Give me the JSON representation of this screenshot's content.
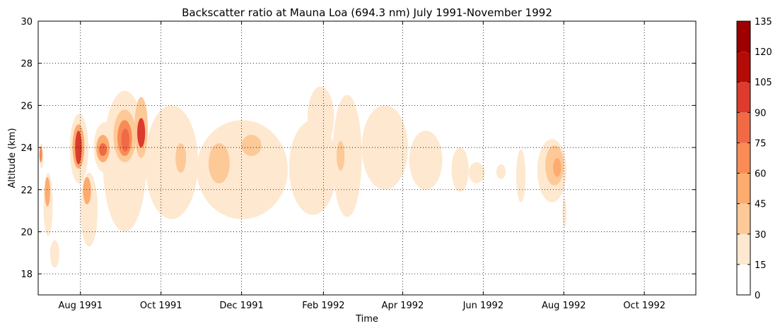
{
  "chart_data": {
    "type": "heatmap",
    "title": "Backscatter ratio at Mauna Loa (694.3 nm) July 1991-November 1992",
    "xlabel": "Time",
    "ylabel": "Altitude (km)",
    "xlim": [
      "1991-06-30",
      "1992-11-09"
    ],
    "ylim": [
      17,
      30
    ],
    "x_tick_labels": [
      {
        "date": "1991-08-01",
        "label": "Aug 1991"
      },
      {
        "date": "1991-10-01",
        "label": "Oct 1991"
      },
      {
        "date": "1991-12-01",
        "label": "Dec 1991"
      },
      {
        "date": "1992-02-01",
        "label": "Feb 1992"
      },
      {
        "date": "1992-04-01",
        "label": "Apr 1992"
      },
      {
        "date": "1992-06-01",
        "label": "Jun 1992"
      },
      {
        "date": "1992-08-01",
        "label": "Aug 1992"
      },
      {
        "date": "1992-10-01",
        "label": "Oct 1992"
      }
    ],
    "y_ticks": [
      18,
      20,
      22,
      24,
      26,
      28,
      30
    ],
    "grid": true,
    "colorbar": {
      "levels": [
        0,
        15,
        30,
        45,
        60,
        75,
        90,
        105,
        120,
        135
      ],
      "colors": [
        "#ffffff",
        "#fee8cf",
        "#fdc997",
        "#fdab6f",
        "#f88b56",
        "#ef6a45",
        "#dc3b2d",
        "#b50b06",
        "#9c0000",
        "#6b0000"
      ]
    },
    "regions": [
      {
        "date_start": "1991-07-01",
        "date_end": "1991-07-04",
        "alt_min": 23.0,
        "alt_max": 24.2,
        "value": 15
      },
      {
        "date_start": "1991-07-01",
        "date_end": "1991-07-03",
        "alt_min": 23.3,
        "alt_max": 24.0,
        "value": 60
      },
      {
        "date_start": "1991-07-04",
        "date_end": "1991-07-11",
        "alt_min": 19.8,
        "alt_max": 22.8,
        "value": 15
      },
      {
        "date_start": "1991-07-05",
        "date_end": "1991-07-09",
        "alt_min": 21.2,
        "alt_max": 22.6,
        "value": 45
      },
      {
        "date_start": "1991-07-09",
        "date_end": "1991-07-16",
        "alt_min": 18.3,
        "alt_max": 19.6,
        "value": 15
      },
      {
        "date_start": "1991-07-24",
        "date_end": "1991-08-07",
        "alt_min": 22.3,
        "alt_max": 25.6,
        "value": 15
      },
      {
        "date_start": "1991-07-26",
        "date_end": "1991-08-04",
        "alt_min": 23.0,
        "alt_max": 25.1,
        "value": 45
      },
      {
        "date_start": "1991-07-28",
        "date_end": "1991-08-02",
        "alt_min": 23.2,
        "alt_max": 24.8,
        "value": 90
      },
      {
        "date_start": "1991-08-01",
        "date_end": "1991-08-14",
        "alt_min": 19.3,
        "alt_max": 22.8,
        "value": 15
      },
      {
        "date_start": "1991-08-03",
        "date_end": "1991-08-09",
        "alt_min": 21.3,
        "alt_max": 22.6,
        "value": 45
      },
      {
        "date_start": "1991-08-11",
        "date_end": "1991-08-28",
        "alt_min": 22.8,
        "alt_max": 25.2,
        "value": 15
      },
      {
        "date_start": "1991-08-13",
        "date_end": "1991-08-23",
        "alt_min": 23.3,
        "alt_max": 24.6,
        "value": 45
      },
      {
        "date_start": "1991-08-15",
        "date_end": "1991-08-21",
        "alt_min": 23.6,
        "alt_max": 24.2,
        "value": 75
      },
      {
        "date_start": "1991-08-18",
        "date_end": "1991-09-20",
        "alt_min": 20.0,
        "alt_max": 26.7,
        "value": 15
      },
      {
        "date_start": "1991-08-26",
        "date_end": "1991-09-12",
        "alt_min": 23.3,
        "alt_max": 25.8,
        "value": 30
      },
      {
        "date_start": "1991-08-29",
        "date_end": "1991-09-09",
        "alt_min": 23.6,
        "alt_max": 25.3,
        "value": 60
      },
      {
        "date_start": "1991-09-01",
        "date_end": "1991-09-07",
        "alt_min": 23.8,
        "alt_max": 24.9,
        "value": 75
      },
      {
        "date_start": "1991-09-11",
        "date_end": "1991-09-21",
        "alt_min": 23.5,
        "alt_max": 26.4,
        "value": 30
      },
      {
        "date_start": "1991-09-13",
        "date_end": "1991-09-19",
        "alt_min": 24.0,
        "alt_max": 25.4,
        "value": 90
      },
      {
        "date_start": "1991-09-19",
        "date_end": "1991-10-29",
        "alt_min": 20.6,
        "alt_max": 26.0,
        "value": 15
      },
      {
        "date_start": "1991-10-12",
        "date_end": "1991-10-20",
        "alt_min": 22.8,
        "alt_max": 24.2,
        "value": 30
      },
      {
        "date_start": "1991-10-28",
        "date_end": "1992-01-05",
        "alt_min": 20.6,
        "alt_max": 25.3,
        "value": 15
      },
      {
        "date_start": "1991-11-06",
        "date_end": "1991-11-22",
        "alt_min": 22.3,
        "alt_max": 24.2,
        "value": 30
      },
      {
        "date_start": "1991-12-01",
        "date_end": "1991-12-16",
        "alt_min": 23.6,
        "alt_max": 24.6,
        "value": 30
      },
      {
        "date_start": "1992-01-06",
        "date_end": "1992-02-11",
        "alt_min": 20.8,
        "alt_max": 25.3,
        "value": 15
      },
      {
        "date_start": "1992-01-20",
        "date_end": "1992-02-09",
        "alt_min": 24.0,
        "alt_max": 26.9,
        "value": 15
      },
      {
        "date_start": "1992-02-08",
        "date_end": "1992-03-01",
        "alt_min": 20.7,
        "alt_max": 26.5,
        "value": 15
      },
      {
        "date_start": "1992-02-11",
        "date_end": "1992-02-17",
        "alt_min": 22.9,
        "alt_max": 24.3,
        "value": 30
      },
      {
        "date_start": "1992-03-01",
        "date_end": "1992-04-05",
        "alt_min": 22.0,
        "alt_max": 26.0,
        "value": 15
      },
      {
        "date_start": "1992-04-06",
        "date_end": "1992-05-01",
        "alt_min": 22.0,
        "alt_max": 24.8,
        "value": 15
      },
      {
        "date_start": "1992-05-08",
        "date_end": "1992-05-21",
        "alt_min": 21.9,
        "alt_max": 24.0,
        "value": 15
      },
      {
        "date_start": "1992-05-21",
        "date_end": "1992-06-02",
        "alt_min": 22.3,
        "alt_max": 23.3,
        "value": 15
      },
      {
        "date_start": "1992-06-11",
        "date_end": "1992-06-18",
        "alt_min": 22.5,
        "alt_max": 23.2,
        "value": 15
      },
      {
        "date_start": "1992-06-26",
        "date_end": "1992-07-03",
        "alt_min": 21.4,
        "alt_max": 23.9,
        "value": 15
      },
      {
        "date_start": "1992-07-12",
        "date_end": "1992-08-03",
        "alt_min": 21.4,
        "alt_max": 24.4,
        "value": 15
      },
      {
        "date_start": "1992-07-18",
        "date_end": "1992-08-01",
        "alt_min": 22.2,
        "alt_max": 24.1,
        "value": 30
      },
      {
        "date_start": "1992-07-24",
        "date_end": "1992-07-30",
        "alt_min": 22.6,
        "alt_max": 23.5,
        "value": 45
      },
      {
        "date_start": "1992-07-31",
        "date_end": "1992-08-03",
        "alt_min": 20.2,
        "alt_max": 21.6,
        "value": 15
      }
    ]
  }
}
